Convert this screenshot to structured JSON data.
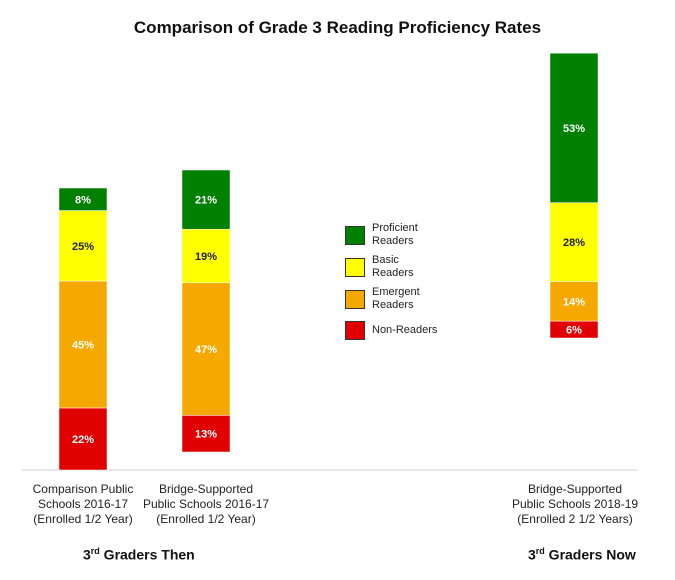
{
  "chart_data": {
    "type": "bar",
    "stacked": true,
    "title": "Comparison of Grade 3 Reading Proficiency Rates",
    "categories": [
      "Comparison Public\nSchools 2016-17\n(Enrolled 1/2 Year)",
      "Bridge-Supported\nPublic Schools 2016-17\n(Enrolled 1/2 Year)",
      "Bridge-Supported\nPublic Schools 2018-19\n(Enrolled 2 1/2 Years)"
    ],
    "series": [
      {
        "name": "Non-Readers",
        "color": "#e00000",
        "values": [
          22,
          13,
          6
        ],
        "labels": [
          "22%",
          "13%",
          "6%"
        ]
      },
      {
        "name": "Emergent Readers",
        "color": "#f5a800",
        "values": [
          45,
          47,
          14
        ],
        "labels": [
          "45%",
          "47%",
          "14%"
        ]
      },
      {
        "name": "Basic Readers",
        "color": "#ffff00",
        "values": [
          25,
          19,
          28
        ],
        "labels": [
          "25%",
          "19%",
          "28%"
        ]
      },
      {
        "name": "Proficient Readers",
        "color": "#008000",
        "values": [
          8,
          21,
          53
        ],
        "labels": [
          "8%",
          "21%",
          "53%"
        ]
      }
    ],
    "baselines": [
      0,
      0,
      0
    ],
    "legend": {
      "position": "center",
      "entries": [
        {
          "label": "Proficient\nReaders",
          "color": "#008000"
        },
        {
          "label": "Basic\nReaders",
          "color": "#ffff00"
        },
        {
          "label": "Emergent\nReaders",
          "color": "#f5a800"
        },
        {
          "label": "Non-Readers",
          "color": "#e00000"
        }
      ]
    },
    "groups": [
      {
        "prefix": "3",
        "sup": "rd",
        "suffix": " Graders Then"
      },
      {
        "prefix": "3",
        "sup": "rd",
        "suffix": " Graders Now"
      }
    ],
    "grid": false
  }
}
